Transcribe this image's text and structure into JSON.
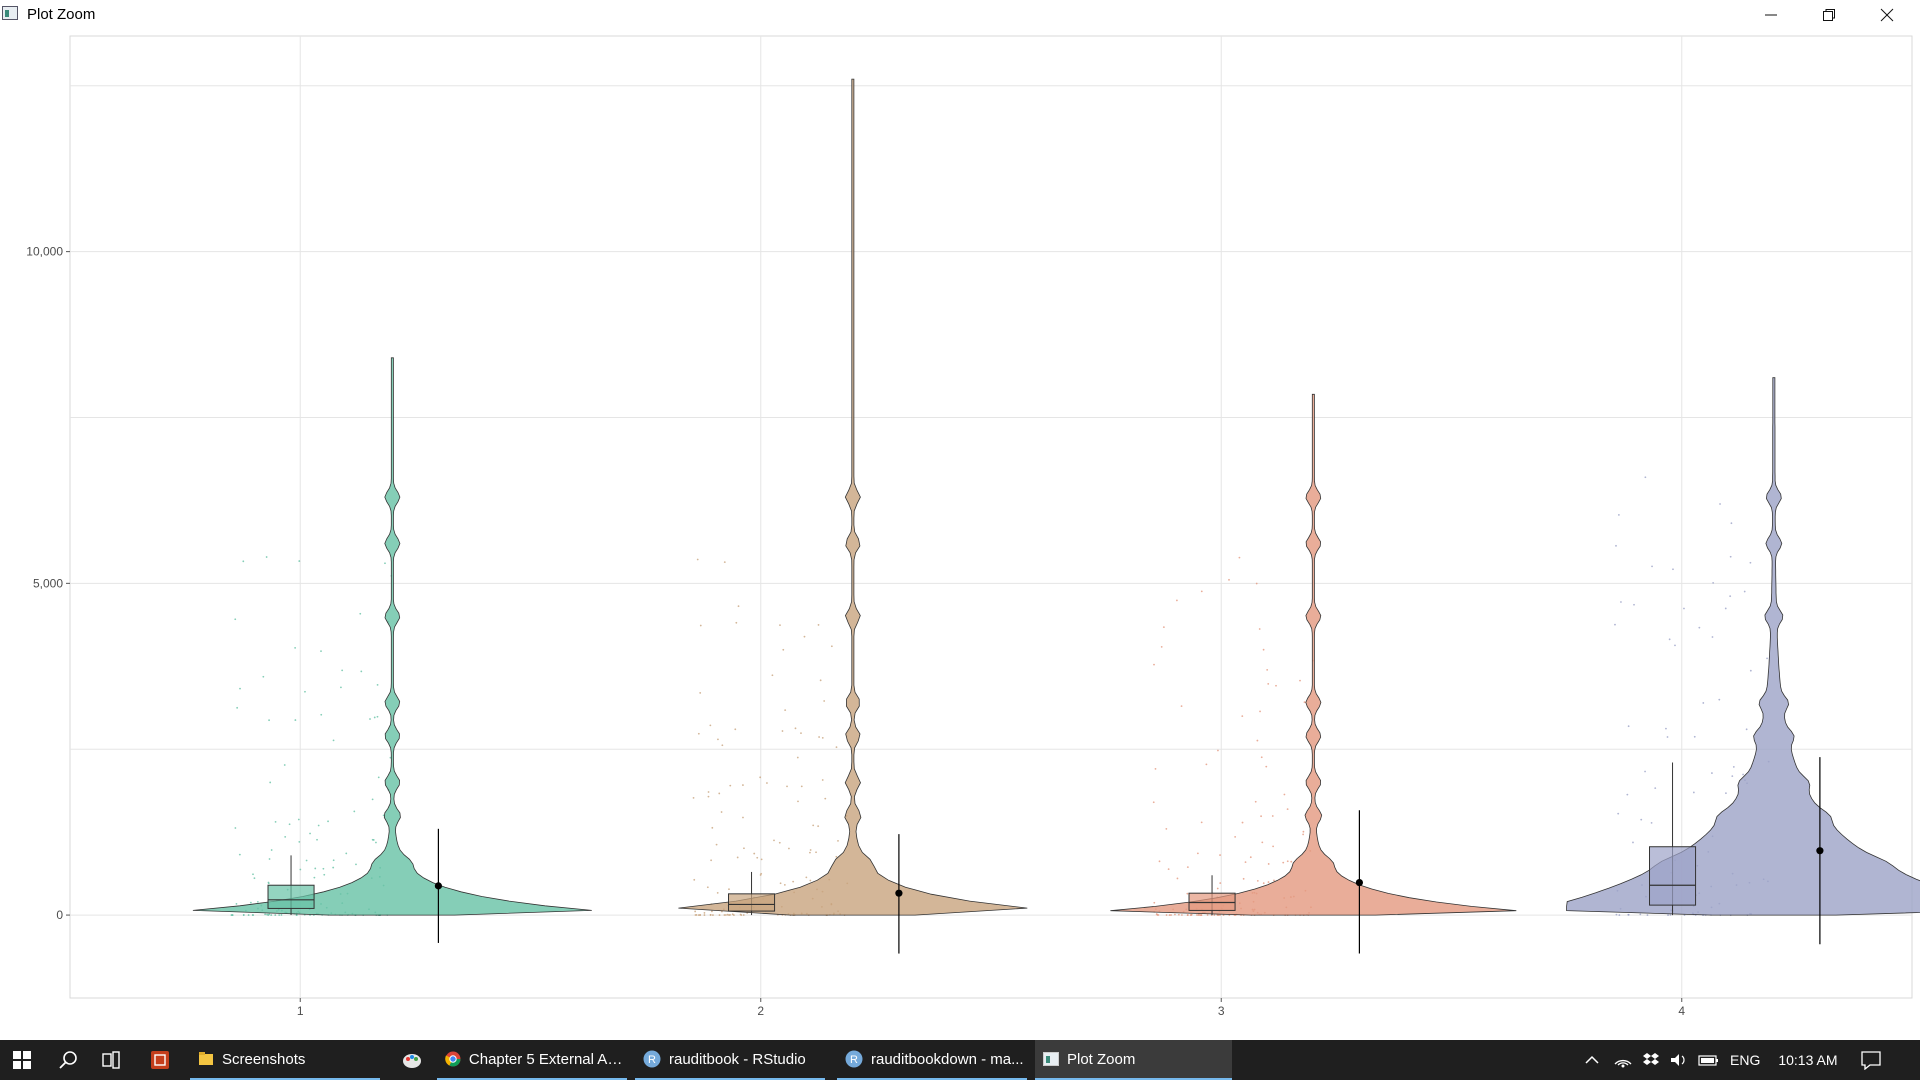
{
  "window": {
    "title": "Plot Zoom",
    "minimize_icon": "minimize-icon",
    "maximize_icon": "restore-icon",
    "close_icon": "close-icon"
  },
  "chart_data": {
    "type": "violin",
    "title": "",
    "xlabel": "",
    "ylabel": "",
    "ylim": [
      -1250,
      13250
    ],
    "y_ticks": [
      0,
      5000,
      10000
    ],
    "y_tick_labels": [
      "0",
      "5,000",
      "10,000"
    ],
    "categories": [
      "1",
      "2",
      "3",
      "4"
    ],
    "grid": true,
    "legend": "none",
    "series": [
      {
        "category": "1",
        "color": "#66c2a5",
        "violin_max": 8400,
        "box": {
          "q1": 100,
          "median": 230,
          "q3": 450,
          "whisker_low": 0,
          "whisker_high": 900
        },
        "mean": 440,
        "mean_low": -420,
        "mean_high": 1300
      },
      {
        "category": "2",
        "color": "#c8a47e",
        "violin_max": 12600,
        "box": {
          "q1": 60,
          "median": 160,
          "q3": 320,
          "whisker_low": 0,
          "whisker_high": 650
        },
        "mean": 330,
        "mean_low": -580,
        "mean_high": 1220
      },
      {
        "category": "3",
        "color": "#e4987f",
        "violin_max": 7850,
        "box": {
          "q1": 70,
          "median": 190,
          "q3": 330,
          "whisker_low": 0,
          "whisker_high": 600
        },
        "mean": 490,
        "mean_low": -580,
        "mean_high": 1580
      },
      {
        "category": "4",
        "color": "#9ca3c7",
        "violin_max": 8100,
        "box": {
          "q1": 150,
          "median": 450,
          "q3": 1030,
          "whisker_low": 0,
          "whisker_high": 2300
        },
        "mean": 970,
        "mean_low": -440,
        "mean_high": 2380
      }
    ]
  },
  "taskbar": {
    "start_icon": "windows-start-icon",
    "search_icon": "search-icon",
    "taskview_icon": "task-view-icon",
    "items": [
      {
        "label": "",
        "icon": "presentation-app-icon"
      },
      {
        "label": "Screenshots",
        "icon": "folder-icon"
      },
      {
        "label": "",
        "icon": "paint-icon"
      },
      {
        "label": "Chapter 5 External Au...",
        "icon": "chrome-icon"
      },
      {
        "label": "rauditbook - RStudio",
        "icon": "rstudio-icon"
      },
      {
        "label": "rauditbookdown - ma...",
        "icon": "rstudio-icon"
      },
      {
        "label": "Plot Zoom",
        "icon": "plot-window-icon"
      }
    ],
    "tray": {
      "language": "ENG",
      "time": "10:13 AM"
    }
  }
}
